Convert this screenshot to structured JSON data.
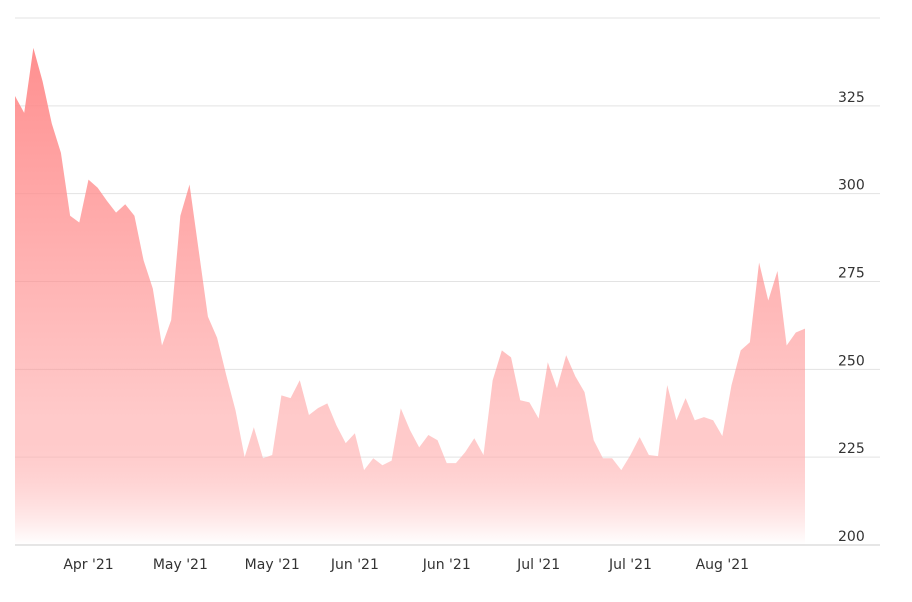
{
  "chart_data": {
    "type": "area",
    "color": "#ff8a8a",
    "categories": [
      null,
      null,
      null,
      null,
      null,
      null,
      null,
      null,
      "Apr '21",
      null,
      null,
      null,
      null,
      null,
      null,
      null,
      null,
      null,
      "May '21",
      null,
      null,
      null,
      null,
      null,
      null,
      null,
      null,
      null,
      "May '21",
      null,
      null,
      null,
      null,
      null,
      null,
      null,
      null,
      "Jun '21",
      null,
      null,
      null,
      null,
      null,
      null,
      null,
      null,
      null,
      "Jun '21",
      null,
      null,
      null,
      null,
      null,
      null,
      null,
      null,
      null,
      "Jul '21",
      null,
      null,
      null,
      null,
      null,
      null,
      null,
      null,
      null,
      "Jul '21",
      null,
      null,
      null,
      null,
      null,
      null,
      null,
      null,
      null,
      "Aug '21",
      null,
      null,
      null,
      null,
      null,
      null,
      null,
      null,
      null
    ],
    "values": [
      327.8,
      323,
      341.5,
      332,
      320,
      311.6,
      293.7,
      291.8,
      304,
      301.7,
      298,
      294.6,
      297,
      293.7,
      281,
      273,
      256.8,
      264,
      293.7,
      302.6,
      283.8,
      265,
      259,
      248.3,
      238.4,
      225,
      233.5,
      224.7,
      225.6,
      242.6,
      241.8,
      246.9,
      237,
      239,
      240.3,
      234,
      229,
      231.8,
      221.3,
      224.7,
      222.7,
      224,
      238.9,
      232.7,
      227.8,
      231.3,
      229.8,
      223.3,
      223.3,
      226.4,
      230.4,
      225.6,
      246.9,
      255.4,
      253.4,
      241.2,
      240.6,
      236,
      252,
      244.6,
      254,
      248,
      243.5,
      229.8,
      224.7,
      224.7,
      221.3,
      225.6,
      230.7,
      225.6,
      225.3,
      245.5,
      235.5,
      241.8,
      235.5,
      236.4,
      235.5,
      231,
      245.5,
      255.4,
      257.7,
      280.4,
      269.6,
      278,
      256.8,
      260.5,
      261.6
    ],
    "ylim": [
      200,
      350
    ],
    "yticks": [
      200,
      225,
      250,
      275,
      300,
      325
    ],
    "grid": true
  }
}
